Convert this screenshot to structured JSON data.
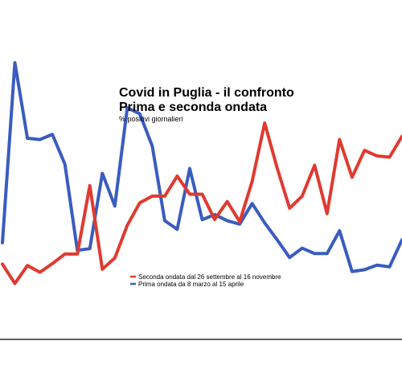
{
  "chart_data": {
    "type": "line",
    "title": "Covid in Puglia - il confronto",
    "subtitle": "Prima e seconda ondata",
    "ylabel": "% positivi giornalieri",
    "xlabel": "",
    "grid": false,
    "legend_position": "center",
    "x": [
      0,
      1,
      2,
      3,
      4,
      5,
      6,
      7,
      8,
      9,
      10,
      11,
      12,
      13,
      14,
      15,
      16,
      17,
      18,
      19,
      20,
      21,
      22,
      23,
      24,
      25,
      26,
      27,
      28,
      29,
      30,
      31,
      32
    ],
    "ylim": [
      0,
      100
    ],
    "series": [
      {
        "name": "Seconda ondata dal 26 settembre al 16 novembre",
        "color": "#e03a30",
        "values": [
          17.9,
          10,
          17.3,
          14.6,
          18.1,
          22,
          22,
          49.9,
          15.8,
          20.4,
          33.7,
          42.9,
          45.6,
          45.6,
          53.8,
          46.4,
          46.4,
          36.1,
          43.4,
          35.2,
          51.6,
          75.4,
          57.1,
          40.7,
          45.6,
          58.2,
          38.5,
          68.7,
          53.3,
          64.3,
          62,
          61.5,
          70
        ]
      },
      {
        "name": "Prima ondata da 8 marzo al 15 aprile",
        "color": "#3a5cc0",
        "values": [
          26.6,
          100,
          69.2,
          68.7,
          70.8,
          58.7,
          23.5,
          24.2,
          54.9,
          41.6,
          81.6,
          79.2,
          66,
          35.6,
          32.1,
          56.9,
          36,
          38.1,
          35.6,
          34.2,
          42.6,
          34.7,
          27.8,
          20.6,
          24.4,
          22.2,
          22.2,
          31.5,
          14.9,
          15.6,
          17.5,
          16.8,
          27.8
        ]
      }
    ]
  }
}
